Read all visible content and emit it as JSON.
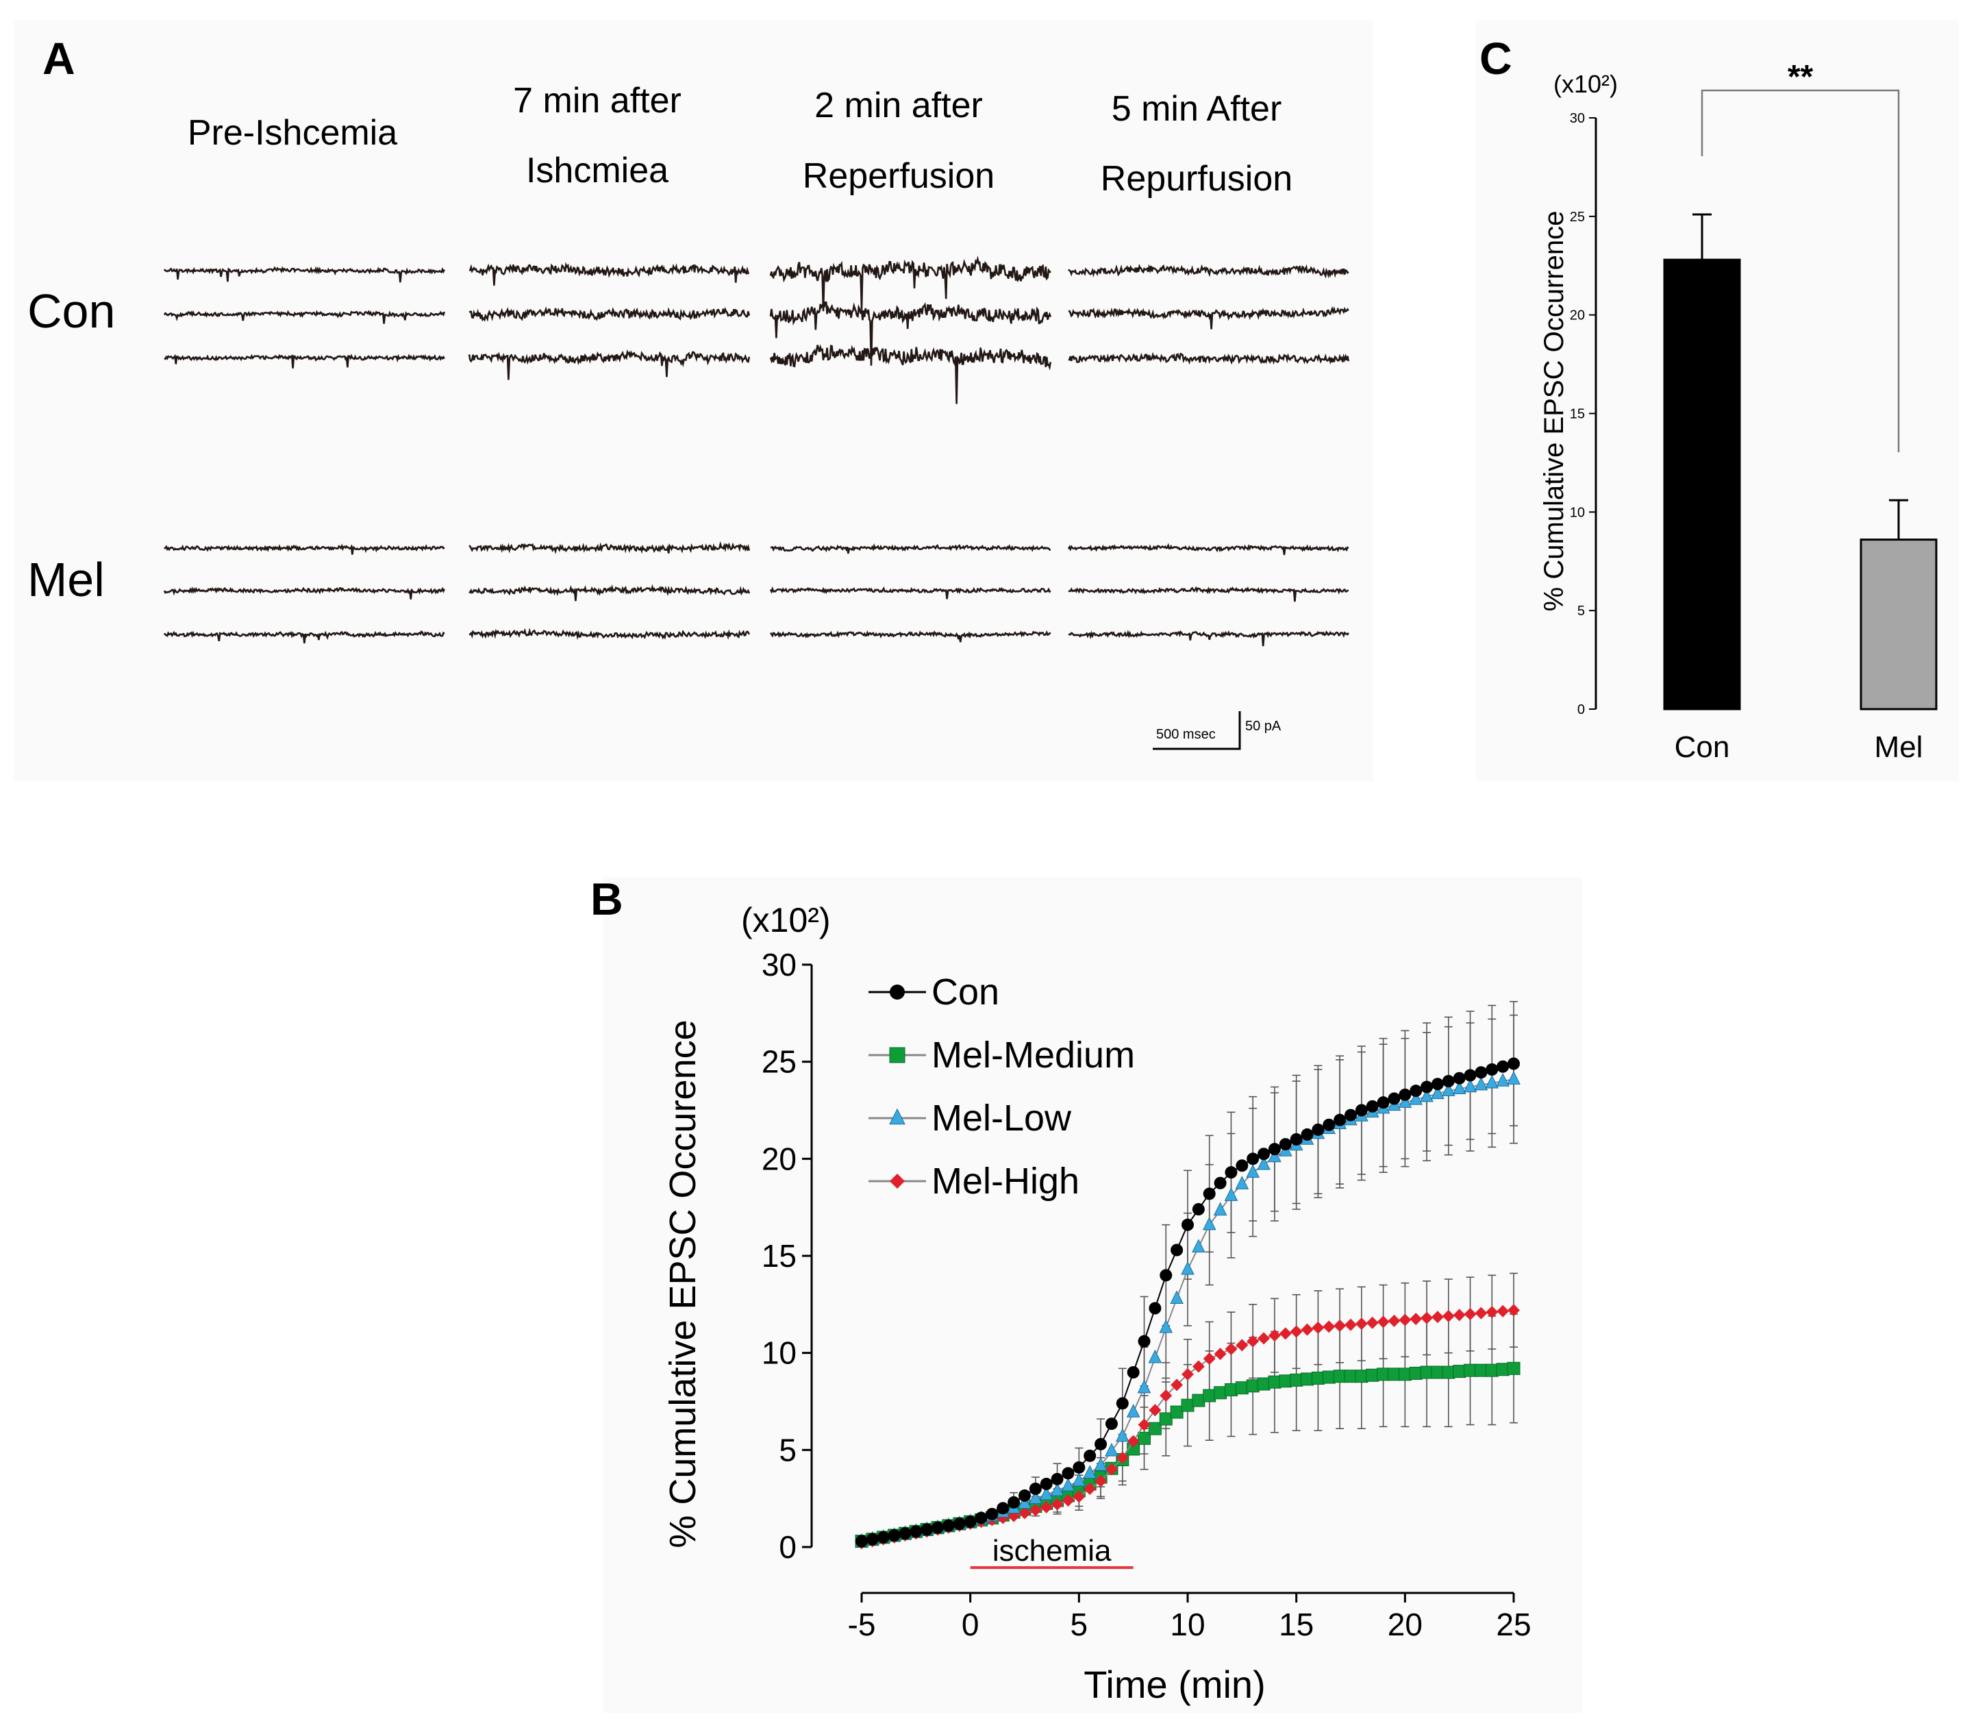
{
  "panel_a": {
    "letter": "A",
    "columns": [
      "Pre-Ishcemia",
      "7 min after\nIshcmiea",
      "2 min after\nReperfusion",
      "5 min After\nRepurfusion"
    ],
    "rows": [
      "Con",
      "Mel"
    ],
    "scale_time": "500 msec",
    "scale_current": "50 pA",
    "trace_color": "#231815",
    "trace_noise": {
      "Con": [
        2,
        5,
        9,
        4
      ],
      "Mel": [
        2,
        3,
        2,
        2
      ]
    }
  },
  "chart_data": [
    {
      "id": "B",
      "panel_letter": "B",
      "type": "line",
      "multiplier_label": "(x10²)",
      "ylabel": "% Cumulative EPSC Occurence",
      "xlabel": "Time (min)",
      "xlim": [
        -5,
        25
      ],
      "ylim": [
        0,
        30
      ],
      "xticks": [
        -5,
        0,
        5,
        10,
        15,
        20,
        25
      ],
      "yticks": [
        0,
        5,
        10,
        15,
        20,
        25,
        30
      ],
      "annotation": {
        "text": "ischemia",
        "from": 0,
        "to": 7.5,
        "color": "#e8373c"
      },
      "legend": "top-left",
      "series": [
        {
          "name": "Con",
          "marker": "circle",
          "color": "#000000",
          "points": [
            [
              -5,
              0.3
            ],
            [
              -4,
              0.5
            ],
            [
              -3,
              0.7
            ],
            [
              -2,
              0.9
            ],
            [
              -1,
              1.1
            ],
            [
              0,
              1.3
            ],
            [
              1,
              1.7
            ],
            [
              2,
              2.3
            ],
            [
              3,
              3.0
            ],
            [
              4,
              3.5
            ],
            [
              5,
              4.1
            ],
            [
              6,
              5.3
            ],
            [
              7,
              7.4
            ],
            [
              8,
              10.6
            ],
            [
              9,
              14.0
            ],
            [
              10,
              16.6
            ],
            [
              11,
              18.2
            ],
            [
              12,
              19.3
            ],
            [
              13,
              20.0
            ],
            [
              14,
              20.5
            ],
            [
              15,
              21.0
            ],
            [
              16,
              21.5
            ],
            [
              17,
              22.0
            ],
            [
              18,
              22.5
            ],
            [
              19,
              22.9
            ],
            [
              20,
              23.3
            ],
            [
              21,
              23.7
            ],
            [
              22,
              24.0
            ],
            [
              23,
              24.3
            ],
            [
              24,
              24.6
            ],
            [
              25,
              24.9
            ]
          ],
          "err": [
            0.2,
            0.2,
            0.2,
            0.3,
            0.3,
            0.3,
            0.4,
            0.5,
            0.6,
            0.8,
            1.0,
            1.3,
            1.8,
            2.3,
            2.6,
            2.8,
            3.0,
            3.1,
            3.2,
            3.2,
            3.3,
            3.3,
            3.3,
            3.3,
            3.3,
            3.3,
            3.3,
            3.3,
            3.3,
            3.3,
            3.2
          ]
        },
        {
          "name": "Mel-Medium",
          "marker": "square",
          "color": "#0f9d3a",
          "points": [
            [
              -5,
              0.3
            ],
            [
              -4,
              0.5
            ],
            [
              -3,
              0.7
            ],
            [
              -2,
              0.9
            ],
            [
              -1,
              1.1
            ],
            [
              0,
              1.3
            ],
            [
              1,
              1.5
            ],
            [
              2,
              1.8
            ],
            [
              3,
              2.1
            ],
            [
              4,
              2.4
            ],
            [
              5,
              2.9
            ],
            [
              6,
              3.6
            ],
            [
              7,
              4.5
            ],
            [
              8,
              5.6
            ],
            [
              9,
              6.6
            ],
            [
              10,
              7.3
            ],
            [
              11,
              7.8
            ],
            [
              12,
              8.1
            ],
            [
              13,
              8.3
            ],
            [
              14,
              8.5
            ],
            [
              15,
              8.6
            ],
            [
              16,
              8.7
            ],
            [
              17,
              8.8
            ],
            [
              18,
              8.8
            ],
            [
              19,
              8.9
            ],
            [
              20,
              8.9
            ],
            [
              21,
              9.0
            ],
            [
              22,
              9.0
            ],
            [
              23,
              9.1
            ],
            [
              24,
              9.1
            ],
            [
              25,
              9.2
            ]
          ],
          "err": [
            0.2,
            0.2,
            0.2,
            0.2,
            0.3,
            0.3,
            0.3,
            0.4,
            0.5,
            0.6,
            0.8,
            1.0,
            1.3,
            1.6,
            1.9,
            2.1,
            2.3,
            2.4,
            2.5,
            2.6,
            2.6,
            2.7,
            2.7,
            2.7,
            2.7,
            2.7,
            2.8,
            2.8,
            2.8,
            2.8,
            2.8
          ]
        },
        {
          "name": "Mel-Low",
          "marker": "triangle",
          "color": "#3aa9e0",
          "points": [
            [
              -5,
              0.3
            ],
            [
              -4,
              0.5
            ],
            [
              -3,
              0.7
            ],
            [
              -2,
              0.9
            ],
            [
              -1,
              1.1
            ],
            [
              0,
              1.3
            ],
            [
              1,
              1.6
            ],
            [
              2,
              2.0
            ],
            [
              3,
              2.5
            ],
            [
              4,
              2.9
            ],
            [
              5,
              3.4
            ],
            [
              6,
              4.2
            ],
            [
              7,
              5.7
            ],
            [
              8,
              8.2
            ],
            [
              9,
              11.3
            ],
            [
              10,
              14.3
            ],
            [
              11,
              16.6
            ],
            [
              12,
              18.1
            ],
            [
              13,
              19.3
            ],
            [
              14,
              20.1
            ],
            [
              15,
              20.7
            ],
            [
              16,
              21.3
            ],
            [
              17,
              21.8
            ],
            [
              18,
              22.2
            ],
            [
              19,
              22.6
            ],
            [
              20,
              22.9
            ],
            [
              21,
              23.2
            ],
            [
              22,
              23.5
            ],
            [
              23,
              23.7
            ],
            [
              24,
              23.9
            ],
            [
              25,
              24.1
            ]
          ],
          "err": [
            0.2,
            0.2,
            0.2,
            0.3,
            0.3,
            0.3,
            0.4,
            0.5,
            0.6,
            0.7,
            0.9,
            1.1,
            1.5,
            2.1,
            2.6,
            2.9,
            3.1,
            3.2,
            3.3,
            3.3,
            3.3,
            3.3,
            3.3,
            3.3,
            3.3,
            3.3,
            3.3,
            3.3,
            3.3,
            3.3,
            3.3
          ]
        },
        {
          "name": "Mel-High",
          "marker": "diamond",
          "color": "#e0202a",
          "points": [
            [
              -5,
              0.2
            ],
            [
              -4,
              0.4
            ],
            [
              -3,
              0.6
            ],
            [
              -2,
              0.8
            ],
            [
              -1,
              1.0
            ],
            [
              0,
              1.2
            ],
            [
              1,
              1.4
            ],
            [
              2,
              1.6
            ],
            [
              3,
              1.9
            ],
            [
              4,
              2.2
            ],
            [
              5,
              2.6
            ],
            [
              6,
              3.4
            ],
            [
              7,
              4.6
            ],
            [
              8,
              6.3
            ],
            [
              9,
              7.8
            ],
            [
              10,
              8.9
            ],
            [
              11,
              9.7
            ],
            [
              12,
              10.2
            ],
            [
              13,
              10.6
            ],
            [
              14,
              10.9
            ],
            [
              15,
              11.1
            ],
            [
              16,
              11.3
            ],
            [
              17,
              11.4
            ],
            [
              18,
              11.5
            ],
            [
              19,
              11.6
            ],
            [
              20,
              11.7
            ],
            [
              21,
              11.8
            ],
            [
              22,
              11.9
            ],
            [
              23,
              12.0
            ],
            [
              24,
              12.1
            ],
            [
              25,
              12.2
            ]
          ],
          "err": [
            0.2,
            0.2,
            0.2,
            0.2,
            0.3,
            0.3,
            0.3,
            0.4,
            0.4,
            0.5,
            0.7,
            0.9,
            1.2,
            1.5,
            1.7,
            1.8,
            1.9,
            1.9,
            1.9,
            1.9,
            1.9,
            1.9,
            1.9,
            1.9,
            1.9,
            1.9,
            1.9,
            1.9,
            1.9,
            1.9,
            1.9
          ]
        }
      ]
    },
    {
      "id": "C",
      "panel_letter": "C",
      "type": "bar",
      "multiplier_label": "(x10²)",
      "ylabel": "% Cumulative EPSC Occurrence",
      "categories": [
        "Con",
        "Mel"
      ],
      "values": [
        22.8,
        8.6
      ],
      "errors": [
        2.3,
        2.0
      ],
      "colors": [
        "#000000",
        "#a6a6a6"
      ],
      "ylim": [
        0,
        30
      ],
      "yticks": [
        0,
        5,
        10,
        15,
        20,
        25,
        30
      ],
      "significance": "**"
    }
  ]
}
